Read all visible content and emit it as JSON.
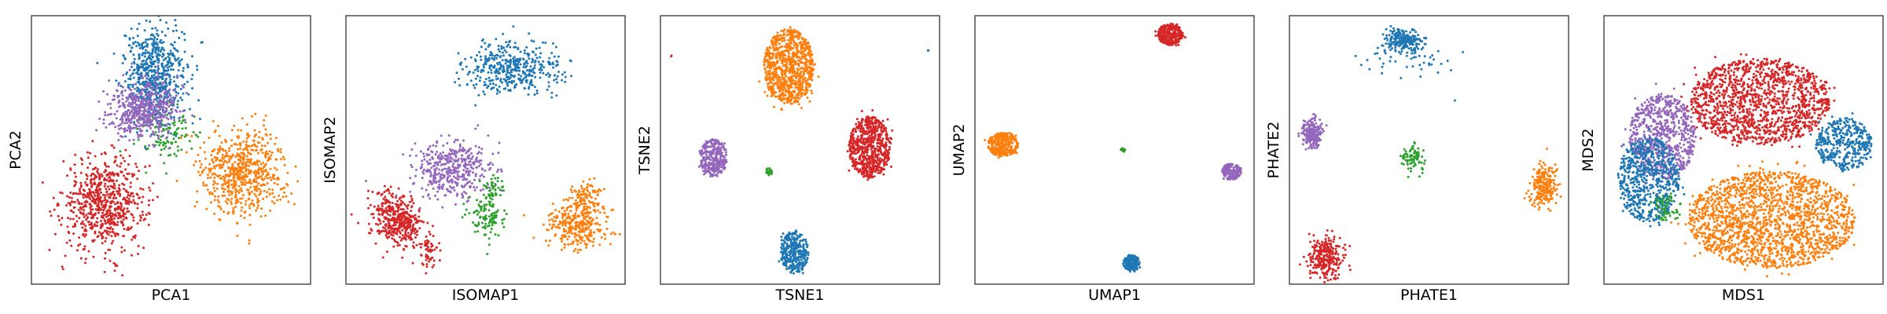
{
  "colors": {
    "blue": "#1f77b4",
    "orange": "#ff7f0e",
    "green": "#2ca02c",
    "red": "#d62728",
    "purple": "#9467bd"
  },
  "chart_data": [
    {
      "type": "scatter",
      "xlabel": "PCA1",
      "ylabel": "PCA2",
      "xlim": [
        0,
        10
      ],
      "ylim": [
        0,
        10
      ],
      "grid": false,
      "ticks": false,
      "clusters": [
        {
          "color": "red",
          "cx": 2.6,
          "cy": 3.0,
          "sx": 0.75,
          "sy": 0.85,
          "n": 700,
          "shape": "gauss"
        },
        {
          "color": "orange",
          "cx": 7.6,
          "cy": 4.2,
          "sx": 0.75,
          "sy": 0.8,
          "n": 650,
          "shape": "gauss"
        },
        {
          "color": "green",
          "cx": 4.9,
          "cy": 5.6,
          "sx": 0.55,
          "sy": 0.55,
          "n": 110,
          "shape": "gauss"
        },
        {
          "color": "blue",
          "cx": 4.4,
          "cy": 7.8,
          "sx": 0.55,
          "sy": 0.85,
          "n": 650,
          "shape": "gauss"
        },
        {
          "color": "purple",
          "cx": 4.0,
          "cy": 6.5,
          "sx": 0.6,
          "sy": 0.55,
          "n": 500,
          "shape": "gauss"
        }
      ]
    },
    {
      "type": "scatter",
      "xlabel": "ISOMAP1",
      "ylabel": "ISOMAP2",
      "xlim": [
        0,
        10
      ],
      "ylim": [
        0,
        10
      ],
      "grid": false,
      "ticks": false,
      "clusters": [
        {
          "color": "blue",
          "cx": 6.0,
          "cy": 8.0,
          "sx": 0.85,
          "sy": 0.5,
          "n": 420,
          "shape": "gauss"
        },
        {
          "color": "purple",
          "cx": 3.8,
          "cy": 4.3,
          "sx": 0.7,
          "sy": 0.5,
          "n": 420,
          "shape": "gauss"
        },
        {
          "color": "red",
          "cx": 1.6,
          "cy": 2.4,
          "sx": 0.35,
          "sy": 0.5,
          "n": 260,
          "shape": "gauss"
        },
        {
          "color": "red",
          "cx": 2.2,
          "cy": 2.3,
          "sx": 0.25,
          "sy": 0.45,
          "n": 170,
          "shape": "gauss"
        },
        {
          "color": "red",
          "cx": 3.0,
          "cy": 1.3,
          "sx": 0.15,
          "sy": 0.35,
          "n": 60,
          "shape": "gauss"
        },
        {
          "color": "green",
          "cx": 5.0,
          "cy": 2.5,
          "sx": 0.35,
          "sy": 0.45,
          "n": 110,
          "shape": "gauss"
        },
        {
          "color": "green",
          "cx": 5.3,
          "cy": 3.6,
          "sx": 0.2,
          "sy": 0.25,
          "n": 40,
          "shape": "gauss"
        },
        {
          "color": "orange",
          "cx": 8.3,
          "cy": 2.2,
          "sx": 0.55,
          "sy": 0.45,
          "n": 320,
          "shape": "gauss"
        },
        {
          "color": "orange",
          "cx": 8.6,
          "cy": 3.3,
          "sx": 0.3,
          "sy": 0.3,
          "n": 90,
          "shape": "gauss"
        }
      ]
    },
    {
      "type": "scatter",
      "xlabel": "TSNE1",
      "ylabel": "TSNE2",
      "xlim": [
        0,
        10
      ],
      "ylim": [
        0,
        10
      ],
      "grid": false,
      "ticks": false,
      "clusters": [
        {
          "color": "orange",
          "cx": 4.6,
          "cy": 8.1,
          "sx": 0.9,
          "sy": 1.4,
          "n": 900,
          "shape": "uniform"
        },
        {
          "color": "red",
          "cx": 7.5,
          "cy": 5.1,
          "sx": 0.75,
          "sy": 1.15,
          "n": 700,
          "shape": "uniform"
        },
        {
          "color": "purple",
          "cx": 1.9,
          "cy": 4.7,
          "sx": 0.5,
          "sy": 0.7,
          "n": 300,
          "shape": "uniform"
        },
        {
          "color": "blue",
          "cx": 4.8,
          "cy": 1.2,
          "sx": 0.5,
          "sy": 0.8,
          "n": 320,
          "shape": "uniform"
        },
        {
          "color": "green",
          "cx": 3.9,
          "cy": 4.2,
          "sx": 0.12,
          "sy": 0.15,
          "n": 25,
          "shape": "uniform"
        },
        {
          "color": "red",
          "cx": 0.4,
          "cy": 8.5,
          "sx": 0.03,
          "sy": 0.03,
          "n": 2,
          "shape": "uniform"
        },
        {
          "color": "blue",
          "cx": 9.6,
          "cy": 8.7,
          "sx": 0.03,
          "sy": 0.03,
          "n": 2,
          "shape": "uniform"
        }
      ]
    },
    {
      "type": "scatter",
      "xlabel": "UMAP1",
      "ylabel": "UMAP2",
      "xlim": [
        0,
        10
      ],
      "ylim": [
        0,
        10
      ],
      "grid": false,
      "ticks": false,
      "clusters": [
        {
          "color": "red",
          "cx": 7.0,
          "cy": 9.3,
          "sx": 0.45,
          "sy": 0.4,
          "n": 300,
          "shape": "uniform"
        },
        {
          "color": "orange",
          "cx": 1.0,
          "cy": 5.2,
          "sx": 0.55,
          "sy": 0.45,
          "n": 320,
          "shape": "uniform"
        },
        {
          "color": "purple",
          "cx": 9.2,
          "cy": 4.2,
          "sx": 0.35,
          "sy": 0.3,
          "n": 160,
          "shape": "uniform"
        },
        {
          "color": "blue",
          "cx": 5.6,
          "cy": 0.8,
          "sx": 0.3,
          "sy": 0.3,
          "n": 160,
          "shape": "uniform"
        },
        {
          "color": "green",
          "cx": 5.3,
          "cy": 5.0,
          "sx": 0.08,
          "sy": 0.08,
          "n": 18,
          "shape": "uniform"
        }
      ]
    },
    {
      "type": "scatter",
      "xlabel": "PHATE1",
      "ylabel": "PHATE2",
      "xlim": [
        0,
        10
      ],
      "ylim": [
        0,
        10
      ],
      "grid": false,
      "ticks": false,
      "clusters": [
        {
          "color": "blue",
          "cx": 4.1,
          "cy": 9.1,
          "sx": 0.35,
          "sy": 0.2,
          "n": 200,
          "shape": "gauss"
        },
        {
          "color": "blue",
          "cx": 4.2,
          "cy": 8.4,
          "sx": 0.9,
          "sy": 0.35,
          "n": 60,
          "shape": "gauss"
        },
        {
          "color": "purple",
          "cx": 0.8,
          "cy": 5.6,
          "sx": 0.2,
          "sy": 0.3,
          "n": 200,
          "shape": "gauss"
        },
        {
          "color": "green",
          "cx": 4.4,
          "cy": 4.7,
          "sx": 0.25,
          "sy": 0.25,
          "n": 80,
          "shape": "gauss"
        },
        {
          "color": "orange",
          "cx": 9.1,
          "cy": 3.7,
          "sx": 0.25,
          "sy": 0.4,
          "n": 220,
          "shape": "gauss"
        },
        {
          "color": "red",
          "cx": 1.3,
          "cy": 1.0,
          "sx": 0.3,
          "sy": 0.4,
          "n": 280,
          "shape": "gauss"
        }
      ]
    },
    {
      "type": "scatter",
      "xlabel": "MDS1",
      "ylabel": "MDS2",
      "xlim": [
        0,
        10
      ],
      "ylim": [
        0,
        10
      ],
      "grid": false,
      "ticks": false,
      "clusters": [
        {
          "color": "red",
          "cx": 5.6,
          "cy": 6.8,
          "sx": 2.5,
          "sy": 1.6,
          "n": 1400,
          "shape": "uniform"
        },
        {
          "color": "orange",
          "cx": 6.0,
          "cy": 2.4,
          "sx": 3.0,
          "sy": 1.8,
          "n": 1800,
          "shape": "uniform"
        },
        {
          "color": "purple",
          "cx": 2.1,
          "cy": 5.5,
          "sx": 1.2,
          "sy": 1.6,
          "n": 700,
          "shape": "uniform"
        },
        {
          "color": "blue",
          "cx": 1.6,
          "cy": 3.9,
          "sx": 1.1,
          "sy": 1.6,
          "n": 650,
          "shape": "uniform"
        },
        {
          "color": "blue",
          "cx": 8.6,
          "cy": 5.2,
          "sx": 1.0,
          "sy": 1.0,
          "n": 400,
          "shape": "uniform"
        },
        {
          "color": "green",
          "cx": 2.2,
          "cy": 2.8,
          "sx": 0.6,
          "sy": 0.5,
          "n": 60,
          "shape": "uniform"
        }
      ]
    }
  ]
}
